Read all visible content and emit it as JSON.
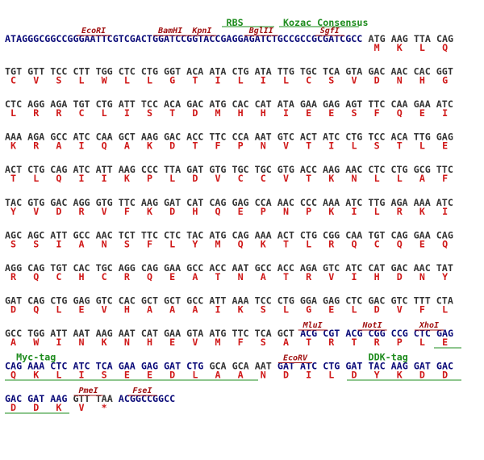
{
  "rows": [
    {
      "annotations": [
        {
          "text": "RBS",
          "color": "#1e8c1e"
        },
        {
          "text": "Kozac Consensus",
          "color": "#1e8c1e"
        },
        {
          "text": "EcoRI",
          "color": "#a01010"
        },
        {
          "text": "BamHI",
          "color": "#a01010"
        },
        {
          "text": "KpnI",
          "color": "#a01010"
        },
        {
          "text": "BglII",
          "color": "#a01010"
        },
        {
          "text": "SgfI",
          "color": "#a01010"
        }
      ],
      "dna": [
        {
          "text": "ATAGGGCGGCCGGGAATTCGTCGACTGGATCCGGTACCGAGGAGATCTGCCGCCGCGATCGCC",
          "color": "#0a0a78"
        },
        {
          "text": "ATG AAG TTA CAG",
          "color": "#333333"
        }
      ],
      "protein": [
        "M",
        "K",
        "L",
        "Q"
      ]
    },
    {
      "dna": [
        {
          "text": "TGT GTT TCC CTT TGG CTC CTG GGT ACA ATA CTG ATA TTG TGC TCA GTA GAC AAC CAC GGT",
          "color": "#333333"
        }
      ],
      "protein": [
        "C",
        "V",
        "S",
        "L",
        "W",
        "L",
        "L",
        "G",
        "T",
        "I",
        "L",
        "I",
        "L",
        "C",
        "S",
        "V",
        "D",
        "N",
        "H",
        "G"
      ]
    },
    {
      "dna": [
        {
          "text": "CTC AGG AGA TGT CTG ATT TCC ACA GAC ATG CAC CAT ATA GAA GAG AGT TTC CAA GAA ATC",
          "color": "#333333"
        }
      ],
      "protein": [
        "L",
        "R",
        "R",
        "C",
        "L",
        "I",
        "S",
        "T",
        "D",
        "M",
        "H",
        "H",
        "I",
        "E",
        "E",
        "S",
        "F",
        "Q",
        "E",
        "I"
      ]
    },
    {
      "dna": [
        {
          "text": "AAA AGA GCC ATC CAA GCT AAG GAC ACC TTC CCA AAT GTC ACT ATC CTG TCC ACA TTG GAG",
          "color": "#333333"
        }
      ],
      "protein": [
        "K",
        "R",
        "A",
        "I",
        "Q",
        "A",
        "K",
        "D",
        "T",
        "F",
        "P",
        "N",
        "V",
        "T",
        "I",
        "L",
        "S",
        "T",
        "L",
        "E"
      ]
    },
    {
      "dna": [
        {
          "text": "ACT CTG CAG ATC ATT AAG CCC TTA GAT GTG TGC TGC GTG ACC AAG AAC CTC CTG GCG TTC",
          "color": "#333333"
        }
      ],
      "protein": [
        "T",
        "L",
        "Q",
        "I",
        "I",
        "K",
        "P",
        "L",
        "D",
        "V",
        "C",
        "C",
        "V",
        "T",
        "K",
        "N",
        "L",
        "L",
        "A",
        "F"
      ]
    },
    {
      "dna": [
        {
          "text": "TAC GTG GAC AGG GTG TTC AAG GAT CAT CAG GAG CCA AAC CCC AAA ATC TTG AGA AAA ATC",
          "color": "#333333"
        }
      ],
      "protein": [
        "Y",
        "V",
        "D",
        "R",
        "V",
        "F",
        "K",
        "D",
        "H",
        "Q",
        "E",
        "P",
        "N",
        "P",
        "K",
        "I",
        "L",
        "R",
        "K",
        "I"
      ]
    },
    {
      "dna": [
        {
          "text": "AGC AGC ATT GCC AAC TCT TTC CTC TAC ATG CAG AAA ACT CTG CGG CAA TGT CAG GAA CAG",
          "color": "#333333"
        }
      ],
      "protein": [
        "S",
        "S",
        "I",
        "A",
        "N",
        "S",
        "F",
        "L",
        "Y",
        "M",
        "Q",
        "K",
        "T",
        "L",
        "R",
        "Q",
        "C",
        "Q",
        "E",
        "Q"
      ]
    },
    {
      "dna": [
        {
          "text": "AGG CAG TGT CAC TGC AGG CAG GAA GCC ACC AAT GCC ACC AGA GTC ATC CAT GAC AAC TAT",
          "color": "#333333"
        }
      ],
      "protein": [
        "R",
        "Q",
        "C",
        "H",
        "C",
        "R",
        "Q",
        "E",
        "A",
        "T",
        "N",
        "A",
        "T",
        "R",
        "V",
        "I",
        "H",
        "D",
        "N",
        "Y"
      ]
    },
    {
      "dna": [
        {
          "text": "GAT CAG CTG GAG GTC CAC GCT GCT GCC ATT AAA TCC CTG GGA GAG CTC GAC GTC TTT CTA",
          "color": "#333333"
        }
      ],
      "protein": [
        "D",
        "Q",
        "L",
        "E",
        "V",
        "H",
        "A",
        "A",
        "A",
        "I",
        "K",
        "S",
        "L",
        "G",
        "E",
        "L",
        "D",
        "V",
        "F",
        "L"
      ]
    },
    {
      "annotations": [
        {
          "text": "MluI",
          "color": "#a01010"
        },
        {
          "text": "NotI",
          "color": "#a01010"
        },
        {
          "text": "XhoI",
          "color": "#a01010"
        }
      ],
      "dna": [
        {
          "text": "GCC TGG ATT AAT AAG AAT CAT GAA GTA ATG TTC TCA GCT",
          "color": "#333333"
        },
        {
          "text": "ACG CGT ACG CGG CCG CTC GAG",
          "color": "#0a0a78"
        }
      ],
      "protein": [
        "A",
        "W",
        "I",
        "N",
        "K",
        "N",
        "H",
        "E",
        "V",
        "M",
        "F",
        "S",
        "A",
        "T",
        "R",
        "T",
        "R",
        "P",
        "L",
        "E"
      ]
    },
    {
      "annotations": [
        {
          "text": "Myc-tag",
          "color": "#1e8c1e"
        },
        {
          "text": "EcoRV",
          "color": "#a01010"
        },
        {
          "text": "DDK-tag",
          "color": "#1e8c1e"
        }
      ],
      "dna": [
        {
          "text": "CAG AAA CTC ATC TCA GAA GAG GAT CTG",
          "color": "#0a0a78"
        },
        {
          "text": "GCA GCA AAT",
          "color": "#333333"
        },
        {
          "text": "GAT ATC CTG GAT TAC AAG GAT GAC",
          "color": "#0a0a78"
        }
      ],
      "protein": [
        "Q",
        "K",
        "L",
        "I",
        "S",
        "E",
        "E",
        "D",
        "L",
        "A",
        "A",
        "N",
        "D",
        "I",
        "L",
        "D",
        "Y",
        "K",
        "D",
        "D"
      ]
    },
    {
      "annotations": [
        {
          "text": "PmeI",
          "color": "#a01010"
        },
        {
          "text": "FseI",
          "color": "#a01010"
        }
      ],
      "dna": [
        {
          "text": "GAC GAT AAG",
          "color": "#0a0a78"
        },
        {
          "text": "GTT TAA",
          "color": "#333333"
        },
        {
          "text": "ACGGCCGGCC",
          "color": "#0a0a78"
        }
      ],
      "protein": [
        "D",
        "D",
        "K",
        "V",
        "*"
      ]
    }
  ]
}
